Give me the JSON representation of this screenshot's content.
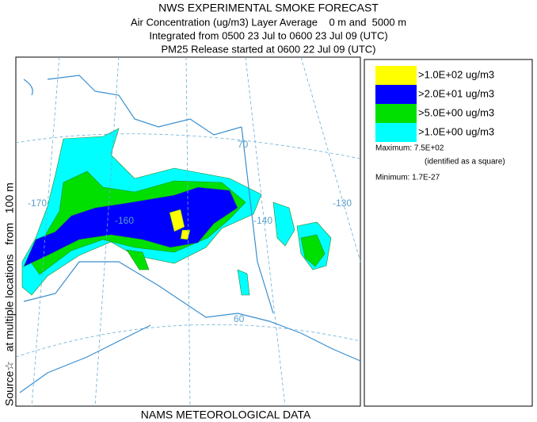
{
  "header": {
    "title": "NWS EXPERIMENTAL SMOKE FORECAST",
    "lines": [
      "Air Concentration (ug/m3) Layer Average    0 m and  5000 m",
      "Integrated from 0500 23 Jul to 0600 23 Jul 09 (UTC)",
      "PM25 Release started at 0600 22 Jul 09 (UTC)"
    ]
  },
  "side_label": "Source☆   at multiple locations   from   100 m",
  "footer": "NAMS METEOROLOGICAL DATA",
  "legend": {
    "items": [
      {
        "label": ">1.0E+02 ug/m3",
        "color": "#ffff00"
      },
      {
        "label": ">2.0E+01 ug/m3",
        "color": "#0000ff"
      },
      {
        "label": ">5.0E+00 ug/m3",
        "color": "#00e000"
      },
      {
        "label": ">1.0E+00 ug/m3",
        "color": "#00ffff"
      }
    ],
    "maximum": "Maximum: 7.5E+02",
    "maximum_note": "(identified as a square)",
    "minimum": "Minimum: 1.7E-27"
  },
  "map": {
    "graticule_labels": [
      "-170",
      "-160",
      "-140",
      "-130",
      "70",
      "60"
    ]
  }
}
